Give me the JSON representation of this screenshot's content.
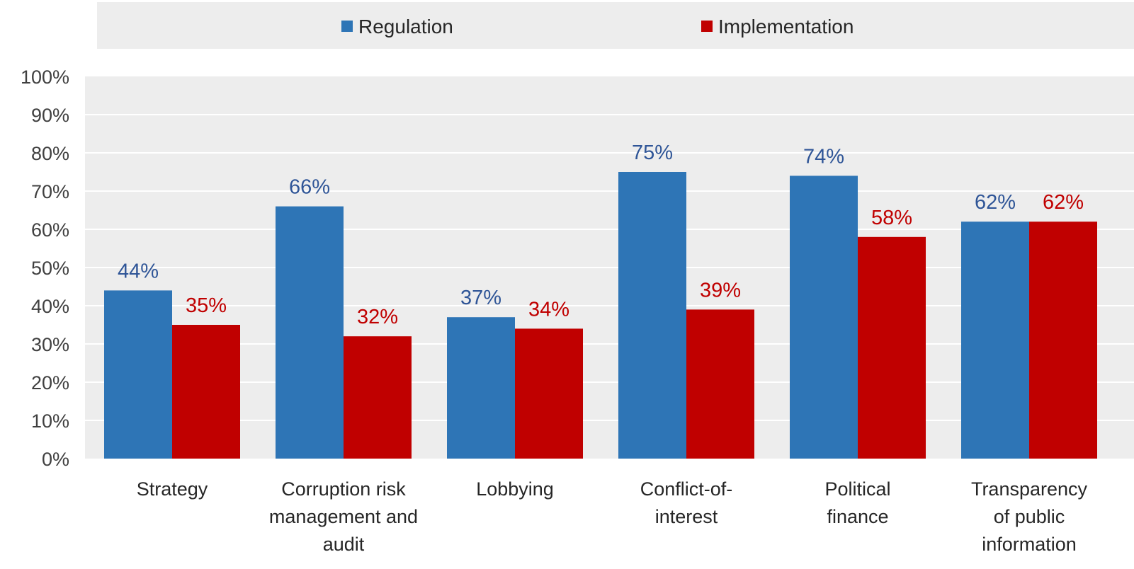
{
  "chart_data": {
    "type": "bar",
    "categories": [
      [
        "Strategy"
      ],
      [
        "Corruption risk",
        "management and",
        "audit"
      ],
      [
        "Lobbying"
      ],
      [
        "Conflict-of-",
        "interest"
      ],
      [
        "Political",
        "finance"
      ],
      [
        "Transparency",
        "of public",
        "information"
      ]
    ],
    "series": [
      {
        "name": "Regulation",
        "color": "#2E75B6",
        "values": [
          44,
          66,
          37,
          75,
          74,
          62
        ],
        "value_labels": [
          "44%",
          "66%",
          "37%",
          "75%",
          "74%",
          "62%"
        ]
      },
      {
        "name": "Implementation",
        "color": "#C00000",
        "values": [
          35,
          32,
          34,
          39,
          58,
          62
        ],
        "value_labels": [
          "35%",
          "32%",
          "34%",
          "39%",
          "58%",
          "62%"
        ]
      }
    ],
    "ylim": [
      0,
      100
    ],
    "y_ticks": [
      "0%",
      "10%",
      "20%",
      "30%",
      "40%",
      "50%",
      "60%",
      "70%",
      "80%",
      "90%",
      "100%"
    ],
    "grid": true,
    "legend_position": "top",
    "title": "",
    "xlabel": "",
    "ylabel": "",
    "plot_background": "#EDEDED",
    "gridline_color": "#FFFFFF",
    "regulation_label_color": "#2F5597"
  }
}
